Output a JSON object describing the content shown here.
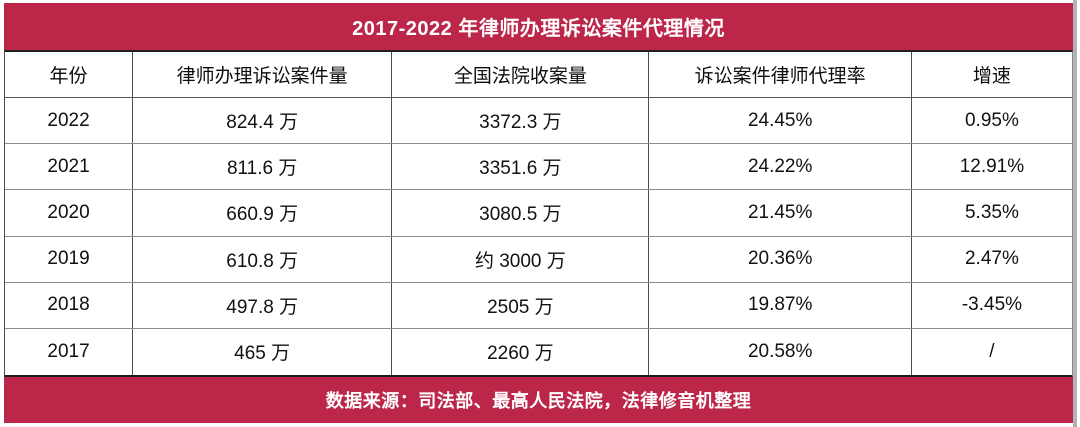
{
  "colors": {
    "accent": "#bc2649",
    "banner_text": "#ffffff",
    "cell_text": "#111111",
    "row_border": "#8a8a8a",
    "column_border": "#4d4d4d"
  },
  "chart_data": {
    "type": "table",
    "title": "2017-2022 年律师办理诉讼案件代理情况",
    "columns": [
      "年份",
      "律师办理诉讼案件量",
      "全国法院收案量",
      "诉讼案件律师代理率",
      "增速"
    ],
    "rows": [
      [
        "2022",
        "824.4 万",
        "3372.3 万",
        "24.45%",
        "0.95%"
      ],
      [
        "2021",
        "811.6 万",
        "3351.6 万",
        "24.22%",
        "12.91%"
      ],
      [
        "2020",
        "660.9 万",
        "3080.5 万",
        "21.45%",
        "5.35%"
      ],
      [
        "2019",
        "610.8 万",
        "约 3000 万",
        "20.36%",
        "2.47%"
      ],
      [
        "2018",
        "497.8 万",
        "2505 万",
        "19.87%",
        "-3.45%"
      ],
      [
        "2017",
        "465 万",
        "2260 万",
        "20.58%",
        "/"
      ]
    ],
    "source_note": "数据来源：司法部、最高人民法院，法律修音机整理",
    "legend": "none",
    "grid": "on"
  }
}
